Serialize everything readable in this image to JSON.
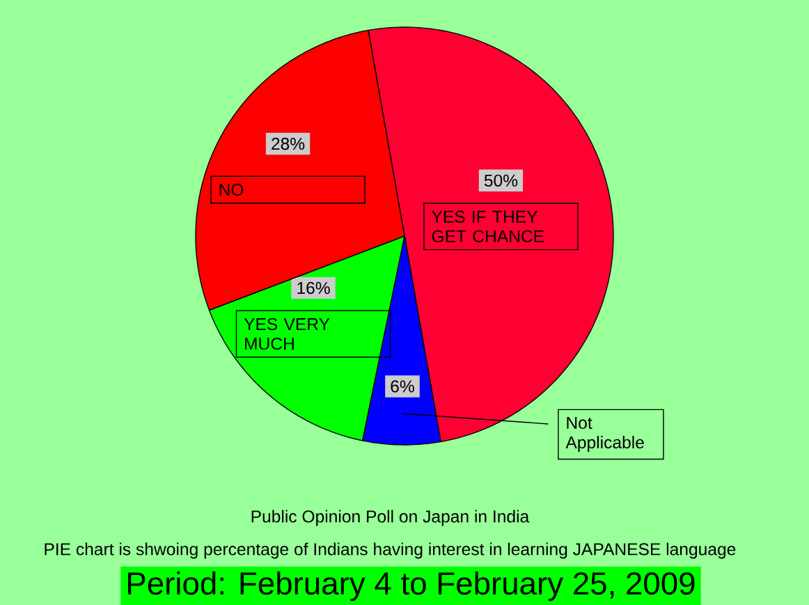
{
  "chart_data": {
    "type": "pie",
    "title": "Public Opinion Poll on Japan in India",
    "subtitle": "PIE chart is shwoing  percentage of Indians having interest in learning JAPANESE language",
    "annotations": [
      "Period: February 4 to February 25, 2009"
    ],
    "categories": [
      "YES IF THEY GET CHANCE",
      "Not Applicable",
      "YES VERY MUCH",
      "NO"
    ],
    "values": [
      50,
      6,
      16,
      28
    ],
    "colors": [
      "#ff0033",
      "#0000ff",
      "#00ff00",
      "#ff0000"
    ],
    "value_labels": [
      "50%",
      "6%",
      "16%",
      "28%"
    ]
  }
}
